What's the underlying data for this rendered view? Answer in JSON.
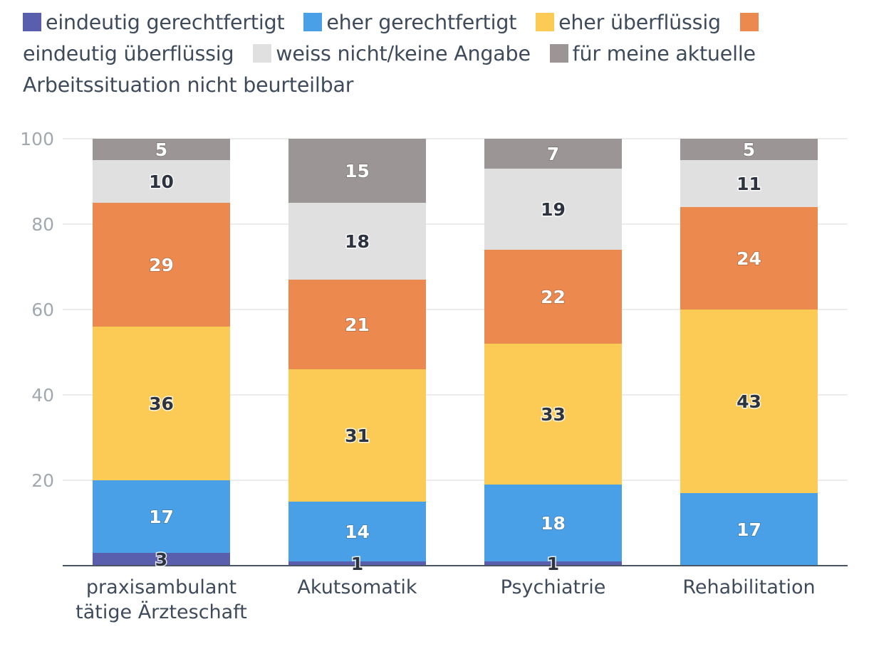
{
  "chart_data": {
    "type": "bar",
    "stacked": true,
    "categories": [
      [
        "praxisambulant",
        "tätige Ärzteschaft"
      ],
      [
        "Akutsomatik"
      ],
      [
        "Psychiatrie"
      ],
      [
        "Rehabilitation"
      ]
    ],
    "series": [
      {
        "name": "eindeutig gerechtfertigt",
        "color": "#5a5fad",
        "label_color": "#2d3440",
        "values": [
          3,
          1,
          1,
          0
        ],
        "labels": [
          "3",
          "1",
          "1",
          ""
        ]
      },
      {
        "name": "eher gerechtfertigt",
        "color": "#49a0e6",
        "label_color": "#ffffff",
        "values": [
          17,
          14,
          18,
          17
        ],
        "labels": [
          "17",
          "14",
          "18",
          "17"
        ]
      },
      {
        "name": "eher überflüssig",
        "color": "#fccb56",
        "label_color": "#2d3440",
        "values": [
          36,
          31,
          33,
          43
        ],
        "labels": [
          "36",
          "31",
          "33",
          "43"
        ]
      },
      {
        "name": "eindeutig überflüssig",
        "color": "#ec894e",
        "label_color": "#ffffff",
        "values": [
          29,
          21,
          22,
          24
        ],
        "labels": [
          "29",
          "21",
          "22",
          "24"
        ]
      },
      {
        "name": "weiss nicht/keine Angabe",
        "color": "#e0e0e0",
        "label_color": "#2d3440",
        "values": [
          10,
          18,
          19,
          11
        ],
        "labels": [
          "10",
          "18",
          "19",
          "11"
        ]
      },
      {
        "name": "für meine aktuelle Arbeitssituation nicht beurteilbar",
        "color": "#9c9596",
        "label_color": "#ffffff",
        "values": [
          5,
          15,
          7,
          5
        ],
        "labels": [
          "5",
          "15",
          "7",
          "5"
        ]
      }
    ],
    "ylim": [
      0,
      100
    ],
    "yticks": [
      20,
      40,
      60,
      80,
      100
    ],
    "title": "",
    "xlabel": "",
    "ylabel": "",
    "grid": true,
    "legend_position": "top"
  },
  "legend": {
    "items": [
      {
        "label": "eindeutig gerechtfertigt"
      },
      {
        "label": "eher gerechtfertigt"
      },
      {
        "label": "eher überflüssig"
      },
      {
        "label": "eindeutig überflüssig"
      },
      {
        "label": "weiss nicht/keine Angabe"
      },
      {
        "label": "für meine aktuelle Arbeitssituation nicht beurteilbar"
      }
    ]
  }
}
